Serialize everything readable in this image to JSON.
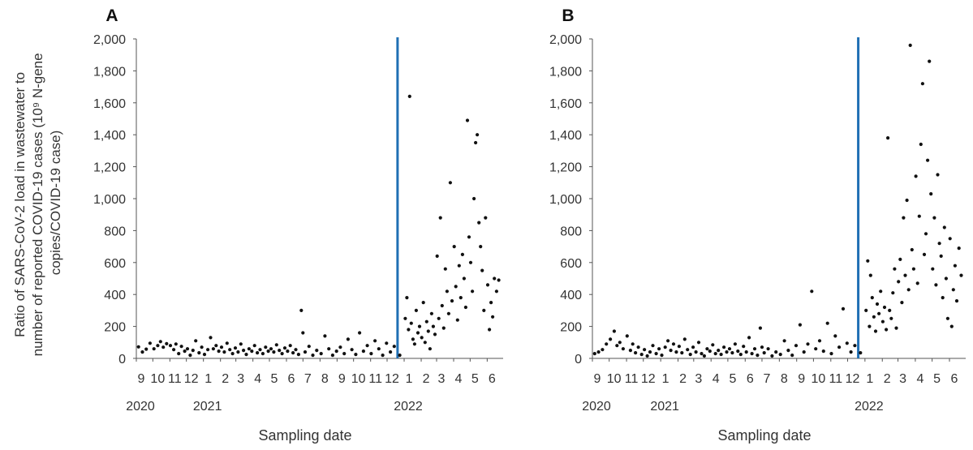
{
  "figure": {
    "ylabel_lines": [
      "Ratio of SARS-CoV-2 load in wastewater to",
      "number of reported COVID-19 cases (10⁹ N-gene",
      "copies/COVID-19 case)"
    ],
    "xlabel": "Sampling date",
    "y_ticks": [
      "0",
      "200",
      "400",
      "600",
      "800",
      "1,000",
      "1,200",
      "1,400",
      "1,600",
      "1,800",
      "2,000"
    ],
    "month_ticks": [
      "9",
      "10",
      "11",
      "12",
      "1",
      "2",
      "3",
      "4",
      "5",
      "6",
      "7",
      "8",
      "9",
      "10",
      "11",
      "12",
      "1",
      "2",
      "3",
      "4",
      "5",
      "6"
    ],
    "year_ticks": [
      "2020",
      "2021",
      "2022"
    ],
    "marker_color": "#111111",
    "vline_color": "#1f6fb4"
  },
  "chart_data": [
    {
      "type": "scatter",
      "panel_label": "A",
      "xlabel": "Sampling date",
      "ylim": [
        0,
        2000
      ],
      "x_range": [
        "2020-09",
        "2022-06"
      ],
      "vertical_line_x": "2021-12-20",
      "points": [
        [
          "2020-09-05",
          72
        ],
        [
          "2020-09-12",
          40
        ],
        [
          "2020-09-19",
          58
        ],
        [
          "2020-09-26",
          95
        ],
        [
          "2020-10-03",
          60
        ],
        [
          "2020-10-10",
          80
        ],
        [
          "2020-10-15",
          105
        ],
        [
          "2020-10-20",
          70
        ],
        [
          "2020-10-26",
          92
        ],
        [
          "2020-11-02",
          80
        ],
        [
          "2020-11-08",
          55
        ],
        [
          "2020-11-12",
          90
        ],
        [
          "2020-11-17",
          30
        ],
        [
          "2020-11-22",
          75
        ],
        [
          "2020-11-28",
          45
        ],
        [
          "2020-12-03",
          60
        ],
        [
          "2020-12-08",
          20
        ],
        [
          "2020-12-13",
          50
        ],
        [
          "2020-12-18",
          110
        ],
        [
          "2020-12-24",
          35
        ],
        [
          "2020-12-29",
          70
        ],
        [
          "2021-01-03",
          25
        ],
        [
          "2021-01-09",
          55
        ],
        [
          "2021-01-14",
          130
        ],
        [
          "2021-01-19",
          60
        ],
        [
          "2021-01-24",
          80
        ],
        [
          "2021-01-29",
          45
        ],
        [
          "2021-02-03",
          70
        ],
        [
          "2021-02-08",
          40
        ],
        [
          "2021-02-13",
          95
        ],
        [
          "2021-02-18",
          55
        ],
        [
          "2021-02-23",
          30
        ],
        [
          "2021-02-28",
          65
        ],
        [
          "2021-03-05",
          40
        ],
        [
          "2021-03-10",
          90
        ],
        [
          "2021-03-15",
          50
        ],
        [
          "2021-03-20",
          25
        ],
        [
          "2021-03-25",
          60
        ],
        [
          "2021-03-30",
          45
        ],
        [
          "2021-04-04",
          80
        ],
        [
          "2021-04-09",
          35
        ],
        [
          "2021-04-14",
          55
        ],
        [
          "2021-04-19",
          30
        ],
        [
          "2021-04-24",
          70
        ],
        [
          "2021-04-29",
          45
        ],
        [
          "2021-05-04",
          60
        ],
        [
          "2021-05-09",
          40
        ],
        [
          "2021-05-14",
          85
        ],
        [
          "2021-05-19",
          50
        ],
        [
          "2021-05-24",
          30
        ],
        [
          "2021-05-29",
          65
        ],
        [
          "2021-06-03",
          45
        ],
        [
          "2021-06-08",
          80
        ],
        [
          "2021-06-13",
          35
        ],
        [
          "2021-06-18",
          55
        ],
        [
          "2021-06-23",
          25
        ],
        [
          "2021-06-28",
          300
        ],
        [
          "2021-07-01",
          160
        ],
        [
          "2021-07-05",
          40
        ],
        [
          "2021-07-12",
          75
        ],
        [
          "2021-07-19",
          20
        ],
        [
          "2021-07-26",
          50
        ],
        [
          "2021-08-03",
          30
        ],
        [
          "2021-08-10",
          140
        ],
        [
          "2021-08-17",
          60
        ],
        [
          "2021-08-24",
          20
        ],
        [
          "2021-08-31",
          45
        ],
        [
          "2021-09-07",
          70
        ],
        [
          "2021-09-14",
          30
        ],
        [
          "2021-09-21",
          120
        ],
        [
          "2021-09-28",
          55
        ],
        [
          "2021-10-05",
          25
        ],
        [
          "2021-10-12",
          160
        ],
        [
          "2021-10-19",
          45
        ],
        [
          "2021-10-26",
          80
        ],
        [
          "2021-11-02",
          30
        ],
        [
          "2021-11-09",
          110
        ],
        [
          "2021-11-16",
          60
        ],
        [
          "2021-11-23",
          20
        ],
        [
          "2021-11-30",
          95
        ],
        [
          "2021-12-07",
          40
        ],
        [
          "2021-12-14",
          75
        ],
        [
          "2021-12-24",
          20
        ],
        [
          "2022-01-03",
          250
        ],
        [
          "2022-01-06",
          380
        ],
        [
          "2022-01-09",
          180
        ],
        [
          "2022-01-11",
          1640
        ],
        [
          "2022-01-14",
          220
        ],
        [
          "2022-01-17",
          120
        ],
        [
          "2022-01-20",
          90
        ],
        [
          "2022-01-23",
          300
        ],
        [
          "2022-01-26",
          160
        ],
        [
          "2022-01-29",
          200
        ],
        [
          "2022-02-02",
          130
        ],
        [
          "2022-02-05",
          350
        ],
        [
          "2022-02-08",
          100
        ],
        [
          "2022-02-11",
          230
        ],
        [
          "2022-02-14",
          170
        ],
        [
          "2022-02-17",
          60
        ],
        [
          "2022-02-20",
          280
        ],
        [
          "2022-02-23",
          200
        ],
        [
          "2022-02-26",
          150
        ],
        [
          "2022-03-02",
          640
        ],
        [
          "2022-03-05",
          250
        ],
        [
          "2022-03-08",
          880
        ],
        [
          "2022-03-11",
          330
        ],
        [
          "2022-03-14",
          190
        ],
        [
          "2022-03-17",
          560
        ],
        [
          "2022-03-20",
          420
        ],
        [
          "2022-03-23",
          280
        ],
        [
          "2022-03-26",
          1100
        ],
        [
          "2022-03-29",
          360
        ],
        [
          "2022-04-02",
          700
        ],
        [
          "2022-04-05",
          450
        ],
        [
          "2022-04-08",
          240
        ],
        [
          "2022-04-11",
          580
        ],
        [
          "2022-04-14",
          380
        ],
        [
          "2022-04-17",
          650
        ],
        [
          "2022-04-20",
          500
        ],
        [
          "2022-04-23",
          320
        ],
        [
          "2022-04-26",
          1490
        ],
        [
          "2022-04-29",
          760
        ],
        [
          "2022-05-02",
          600
        ],
        [
          "2022-05-05",
          420
        ],
        [
          "2022-05-08",
          1000
        ],
        [
          "2022-05-11",
          1350
        ],
        [
          "2022-05-14",
          1400
        ],
        [
          "2022-05-17",
          850
        ],
        [
          "2022-05-20",
          700
        ],
        [
          "2022-05-23",
          550
        ],
        [
          "2022-05-26",
          300
        ],
        [
          "2022-05-29",
          880
        ],
        [
          "2022-06-02",
          460
        ],
        [
          "2022-06-05",
          180
        ],
        [
          "2022-06-08",
          350
        ],
        [
          "2022-06-11",
          260
        ],
        [
          "2022-06-14",
          500
        ],
        [
          "2022-06-18",
          420
        ],
        [
          "2022-06-22",
          490
        ]
      ]
    },
    {
      "type": "scatter",
      "panel_label": "B",
      "xlabel": "Sampling date",
      "ylim": [
        0,
        2000
      ],
      "x_range": [
        "2020-09",
        "2022-06"
      ],
      "vertical_line_x": "2021-12-20",
      "points": [
        [
          "2020-09-05",
          30
        ],
        [
          "2020-09-12",
          40
        ],
        [
          "2020-09-19",
          55
        ],
        [
          "2020-09-26",
          90
        ],
        [
          "2020-10-03",
          120
        ],
        [
          "2020-10-10",
          170
        ],
        [
          "2020-10-15",
          80
        ],
        [
          "2020-10-20",
          100
        ],
        [
          "2020-10-26",
          60
        ],
        [
          "2020-11-02",
          140
        ],
        [
          "2020-11-08",
          50
        ],
        [
          "2020-11-12",
          90
        ],
        [
          "2020-11-17",
          35
        ],
        [
          "2020-11-22",
          70
        ],
        [
          "2020-11-28",
          25
        ],
        [
          "2020-12-03",
          55
        ],
        [
          "2020-12-08",
          15
        ],
        [
          "2020-12-13",
          40
        ],
        [
          "2020-12-18",
          80
        ],
        [
          "2020-12-24",
          30
        ],
        [
          "2020-12-29",
          60
        ],
        [
          "2021-01-03",
          20
        ],
        [
          "2021-01-09",
          70
        ],
        [
          "2021-01-14",
          110
        ],
        [
          "2021-01-19",
          50
        ],
        [
          "2021-01-24",
          90
        ],
        [
          "2021-01-29",
          40
        ],
        [
          "2021-02-03",
          75
        ],
        [
          "2021-02-08",
          35
        ],
        [
          "2021-02-13",
          120
        ],
        [
          "2021-02-18",
          55
        ],
        [
          "2021-02-23",
          25
        ],
        [
          "2021-02-28",
          70
        ],
        [
          "2021-03-05",
          40
        ],
        [
          "2021-03-10",
          100
        ],
        [
          "2021-03-15",
          30
        ],
        [
          "2021-03-20",
          15
        ],
        [
          "2021-03-25",
          60
        ],
        [
          "2021-03-30",
          45
        ],
        [
          "2021-04-04",
          85
        ],
        [
          "2021-04-09",
          30
        ],
        [
          "2021-04-14",
          50
        ],
        [
          "2021-04-19",
          25
        ],
        [
          "2021-04-24",
          70
        ],
        [
          "2021-04-29",
          40
        ],
        [
          "2021-05-04",
          60
        ],
        [
          "2021-05-09",
          35
        ],
        [
          "2021-05-14",
          90
        ],
        [
          "2021-05-19",
          45
        ],
        [
          "2021-05-24",
          25
        ],
        [
          "2021-05-29",
          75
        ],
        [
          "2021-06-03",
          40
        ],
        [
          "2021-06-08",
          130
        ],
        [
          "2021-06-13",
          30
        ],
        [
          "2021-06-18",
          60
        ],
        [
          "2021-06-23",
          20
        ],
        [
          "2021-06-28",
          190
        ],
        [
          "2021-07-01",
          70
        ],
        [
          "2021-07-05",
          35
        ],
        [
          "2021-07-12",
          60
        ],
        [
          "2021-07-19",
          15
        ],
        [
          "2021-07-26",
          40
        ],
        [
          "2021-08-03",
          25
        ],
        [
          "2021-08-10",
          110
        ],
        [
          "2021-08-17",
          50
        ],
        [
          "2021-08-24",
          20
        ],
        [
          "2021-08-31",
          80
        ],
        [
          "2021-09-07",
          210
        ],
        [
          "2021-09-14",
          40
        ],
        [
          "2021-09-21",
          90
        ],
        [
          "2021-09-28",
          420
        ],
        [
          "2021-10-05",
          60
        ],
        [
          "2021-10-12",
          110
        ],
        [
          "2021-10-19",
          45
        ],
        [
          "2021-10-26",
          220
        ],
        [
          "2021-11-02",
          30
        ],
        [
          "2021-11-09",
          140
        ],
        [
          "2021-11-16",
          70
        ],
        [
          "2021-11-23",
          310
        ],
        [
          "2021-11-30",
          95
        ],
        [
          "2021-12-07",
          40
        ],
        [
          "2021-12-14",
          80
        ],
        [
          "2021-12-24",
          35
        ],
        [
          "2022-01-03",
          300
        ],
        [
          "2022-01-06",
          610
        ],
        [
          "2022-01-09",
          200
        ],
        [
          "2022-01-11",
          520
        ],
        [
          "2022-01-14",
          380
        ],
        [
          "2022-01-17",
          260
        ],
        [
          "2022-01-20",
          170
        ],
        [
          "2022-01-23",
          340
        ],
        [
          "2022-01-26",
          280
        ],
        [
          "2022-01-29",
          420
        ],
        [
          "2022-02-02",
          230
        ],
        [
          "2022-02-05",
          320
        ],
        [
          "2022-02-08",
          180
        ],
        [
          "2022-02-11",
          1380
        ],
        [
          "2022-02-14",
          300
        ],
        [
          "2022-02-17",
          250
        ],
        [
          "2022-02-20",
          410
        ],
        [
          "2022-02-23",
          560
        ],
        [
          "2022-02-26",
          190
        ],
        [
          "2022-03-02",
          480
        ],
        [
          "2022-03-05",
          620
        ],
        [
          "2022-03-08",
          350
        ],
        [
          "2022-03-11",
          880
        ],
        [
          "2022-03-14",
          520
        ],
        [
          "2022-03-17",
          990
        ],
        [
          "2022-03-20",
          430
        ],
        [
          "2022-03-23",
          1960
        ],
        [
          "2022-03-26",
          680
        ],
        [
          "2022-03-29",
          560
        ],
        [
          "2022-04-02",
          1140
        ],
        [
          "2022-04-05",
          470
        ],
        [
          "2022-04-08",
          890
        ],
        [
          "2022-04-11",
          1340
        ],
        [
          "2022-04-14",
          1720
        ],
        [
          "2022-04-17",
          650
        ],
        [
          "2022-04-20",
          780
        ],
        [
          "2022-04-23",
          1240
        ],
        [
          "2022-04-26",
          1860
        ],
        [
          "2022-04-29",
          1030
        ],
        [
          "2022-05-02",
          560
        ],
        [
          "2022-05-05",
          880
        ],
        [
          "2022-05-08",
          460
        ],
        [
          "2022-05-11",
          1150
        ],
        [
          "2022-05-14",
          720
        ],
        [
          "2022-05-17",
          640
        ],
        [
          "2022-05-20",
          380
        ],
        [
          "2022-05-23",
          820
        ],
        [
          "2022-05-26",
          500
        ],
        [
          "2022-05-29",
          250
        ],
        [
          "2022-06-02",
          750
        ],
        [
          "2022-06-05",
          200
        ],
        [
          "2022-06-08",
          430
        ],
        [
          "2022-06-11",
          580
        ],
        [
          "2022-06-14",
          360
        ],
        [
          "2022-06-18",
          690
        ],
        [
          "2022-06-22",
          520
        ]
      ]
    }
  ]
}
